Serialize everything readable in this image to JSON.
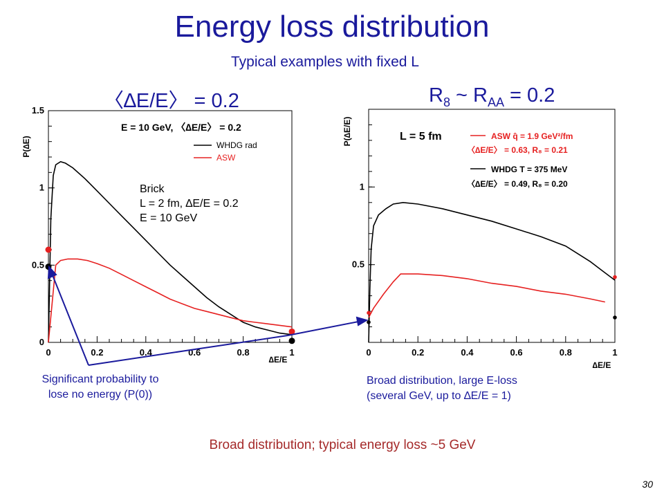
{
  "slide": {
    "title": "Energy loss distribution",
    "subtitle": "Typical examples with fixed L",
    "left_heading": "〈∆E/E〉 = 0.2",
    "right_heading_main": "R",
    "right_heading_sub1": "8",
    "right_heading_mid": " ~ R",
    "right_heading_sub2": "AA",
    "right_heading_end": " = 0.2",
    "footer_note": "Broad distribution; typical energy loss ~5 GeV",
    "slide_number": "30"
  },
  "annotations": {
    "brick_line1": "Brick",
    "brick_line2": "L = 2 fm, ∆E/E = 0.2",
    "brick_line3": "E = 10 GeV",
    "left_callout_line1": "Significant probability to",
    "left_callout_line2": "lose no energy (P(0))",
    "right_callout_line1": "Broad distribution, large E-loss",
    "right_callout_line2": "(several GeV, up to ∆E/E = 1)"
  },
  "colors": {
    "title_blue": "#1a1a9c",
    "asw_red": "#e62020",
    "whdg_black": "#000000",
    "footer_brown": "#a52a2a"
  },
  "chart_data": [
    {
      "type": "line",
      "title": "E = 10 GeV, 〈∆E/E〉 = 0.2",
      "xlabel": "∆E/E",
      "ylabel": "P(∆E)",
      "xlim": [
        0,
        1
      ],
      "ylim": [
        0,
        1.5
      ],
      "xticks": [
        "0",
        "0.2",
        "0.4",
        "0.6",
        "0.8",
        "1"
      ],
      "yticks": [
        "0",
        "0.5",
        "1",
        "1.5"
      ],
      "legend_position": "top-right",
      "series": [
        {
          "name": "WHDG rad",
          "color": "#000000",
          "x": [
            0.0,
            0.005,
            0.01,
            0.02,
            0.03,
            0.05,
            0.07,
            0.1,
            0.15,
            0.2,
            0.25,
            0.3,
            0.35,
            0.4,
            0.45,
            0.5,
            0.55,
            0.6,
            0.65,
            0.7,
            0.75,
            0.8,
            0.85,
            0.9,
            0.95,
            1.0
          ],
          "y": [
            0.0,
            0.4,
            0.8,
            1.08,
            1.15,
            1.17,
            1.16,
            1.13,
            1.06,
            0.98,
            0.9,
            0.82,
            0.74,
            0.66,
            0.58,
            0.5,
            0.43,
            0.36,
            0.29,
            0.23,
            0.18,
            0.13,
            0.1,
            0.08,
            0.06,
            0.05
          ],
          "endpoints": {
            "x0": 0.49,
            "x1": 0.01
          }
        },
        {
          "name": "ASW",
          "color": "#e62020",
          "x": [
            0.0,
            0.03,
            0.05,
            0.08,
            0.12,
            0.16,
            0.2,
            0.25,
            0.3,
            0.35,
            0.4,
            0.45,
            0.5,
            0.55,
            0.6,
            0.65,
            0.7,
            0.75,
            0.8,
            0.85,
            0.9,
            0.95,
            1.0
          ],
          "y": [
            0.0,
            0.5,
            0.53,
            0.54,
            0.54,
            0.53,
            0.51,
            0.48,
            0.44,
            0.4,
            0.36,
            0.32,
            0.28,
            0.25,
            0.22,
            0.2,
            0.18,
            0.16,
            0.14,
            0.13,
            0.12,
            0.11,
            0.1
          ],
          "endpoints": {
            "x0": 0.6,
            "x1": 0.07
          }
        }
      ]
    },
    {
      "type": "line",
      "title": "L = 5 fm",
      "xlabel": "∆E/E",
      "ylabel": "P(∆E/E)",
      "xlim": [
        0,
        1
      ],
      "ylim": [
        0,
        1.5
      ],
      "xticks": [
        "0",
        "0.2",
        "0.4",
        "0.6",
        "0.8",
        "1"
      ],
      "yticks": [
        "0.5",
        "1"
      ],
      "legend_position": "top-right",
      "legend_lines": [
        {
          "text": "ASW  q̂ = 1.9 GeV²/fm",
          "color": "#e62020"
        },
        {
          "text": "〈∆E/E〉 = 0.63, R₈ = 0.21",
          "color": "#e62020"
        },
        {
          "text": "WHDG T = 375 MeV",
          "color": "#000000"
        },
        {
          "text": "〈∆E/E〉 = 0.49, R₈ = 0.20",
          "color": "#000000"
        }
      ],
      "series": [
        {
          "name": "WHDG T = 375 MeV",
          "color": "#000000",
          "x": [
            0.0,
            0.005,
            0.01,
            0.02,
            0.04,
            0.07,
            0.1,
            0.14,
            0.2,
            0.3,
            0.4,
            0.5,
            0.6,
            0.7,
            0.8,
            0.85,
            0.9,
            0.95,
            1.0
          ],
          "y": [
            0.0,
            0.35,
            0.6,
            0.75,
            0.82,
            0.86,
            0.89,
            0.9,
            0.89,
            0.86,
            0.82,
            0.78,
            0.73,
            0.68,
            0.62,
            0.57,
            0.52,
            0.46,
            0.4
          ],
          "endpoints": {
            "x0": 0.13,
            "x1": 0.16
          }
        },
        {
          "name": "ASW q̂ = 1.9 GeV²/fm",
          "color": "#e62020",
          "x": [
            0.0,
            0.02,
            0.06,
            0.1,
            0.13,
            0.2,
            0.3,
            0.4,
            0.5,
            0.6,
            0.7,
            0.8,
            0.9,
            0.96
          ],
          "y": [
            0.16,
            0.22,
            0.31,
            0.39,
            0.44,
            0.44,
            0.43,
            0.41,
            0.38,
            0.36,
            0.33,
            0.31,
            0.28,
            0.26
          ],
          "endpoints": {
            "x0": 0.19,
            "x1": 0.42
          }
        }
      ]
    }
  ]
}
